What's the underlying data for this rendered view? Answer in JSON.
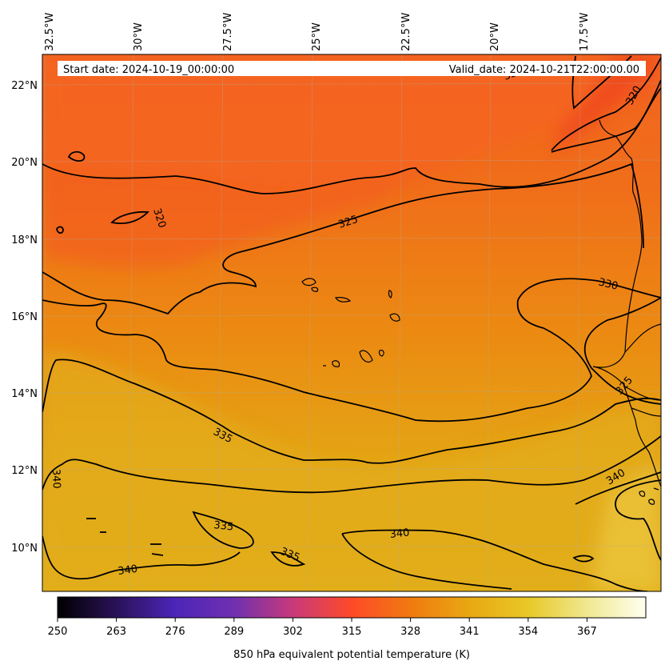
{
  "map": {
    "start_date": "Start date: 2024-10-19_00:00:00",
    "valid_date": "Valid_date: 2024-10-21T22:00:00.00",
    "lon_labels": [
      "32.5°W",
      "30°W",
      "27.5°W",
      "25°W",
      "22.5°W",
      "20°W",
      "17.5°W"
    ],
    "lat_labels": [
      "22°N",
      "20°N",
      "18°N",
      "16°N",
      "14°N",
      "12°N",
      "10°N"
    ],
    "contour_labels": [
      "320",
      "320",
      "325",
      "330",
      "335",
      "335",
      "335",
      "340",
      "340",
      "340",
      "340",
      "325",
      "325"
    ]
  },
  "colorbar": {
    "title": "850 hPa equivalent potential temperature (K)",
    "ticks": [
      "250",
      "263",
      "276",
      "289",
      "302",
      "315",
      "328",
      "341",
      "354",
      "367"
    ],
    "colors": [
      "#000000",
      "#2a1258",
      "#4c25b8",
      "#7030b0",
      "#c83a7a",
      "#ff4a28",
      "#f07a10",
      "#e8a812",
      "#e8c828",
      "#f0e890",
      "#fffff0"
    ]
  },
  "field_colors": {
    "ocean_north": "#f56a1c",
    "band_central": "#ee8a10",
    "south": "#e2ac1a",
    "high_band": "#f4501e"
  }
}
